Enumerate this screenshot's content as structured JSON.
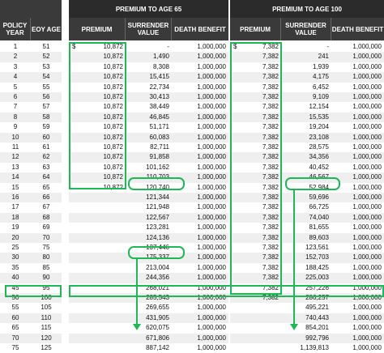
{
  "headers": {
    "policy_year": "POLICY YEAR",
    "eoy_age": "EOY AGE",
    "group65": "PREMIUM TO AGE 65",
    "group100": "PREMIUM TO AGE 100",
    "premium": "PREMIUM",
    "surrender": "SURRENDER VALUE",
    "death": "DEATH BENEFIT"
  },
  "rows": [
    {
      "year": "1",
      "age": "51",
      "p65": "10,872",
      "s65": "-",
      "d65": "1,000,000",
      "p100": "7,382",
      "s100": "-",
      "d100": "1,000,000"
    },
    {
      "year": "2",
      "age": "52",
      "p65": "10,872",
      "s65": "1,490",
      "d65": "1,000,000",
      "p100": "7,382",
      "s100": "241",
      "d100": "1,000,000"
    },
    {
      "year": "3",
      "age": "53",
      "p65": "10,872",
      "s65": "8,308",
      "d65": "1,000,000",
      "p100": "7,382",
      "s100": "1,939",
      "d100": "1,000,000"
    },
    {
      "year": "4",
      "age": "54",
      "p65": "10,872",
      "s65": "15,415",
      "d65": "1,000,000",
      "p100": "7,382",
      "s100": "4,175",
      "d100": "1,000,000"
    },
    {
      "year": "5",
      "age": "55",
      "p65": "10,872",
      "s65": "22,734",
      "d65": "1,000,000",
      "p100": "7,382",
      "s100": "6,452",
      "d100": "1,000,000"
    },
    {
      "year": "6",
      "age": "56",
      "p65": "10,872",
      "s65": "30,413",
      "d65": "1,000,000",
      "p100": "7,382",
      "s100": "9,109",
      "d100": "1,000,000"
    },
    {
      "year": "7",
      "age": "57",
      "p65": "10,872",
      "s65": "38,449",
      "d65": "1,000,000",
      "p100": "7,382",
      "s100": "12,154",
      "d100": "1,000,000"
    },
    {
      "year": "8",
      "age": "58",
      "p65": "10,872",
      "s65": "46,845",
      "d65": "1,000,000",
      "p100": "7,382",
      "s100": "15,535",
      "d100": "1,000,000"
    },
    {
      "year": "9",
      "age": "59",
      "p65": "10,872",
      "s65": "51,171",
      "d65": "1,000,000",
      "p100": "7,382",
      "s100": "19,204",
      "d100": "1,000,000"
    },
    {
      "year": "10",
      "age": "60",
      "p65": "10,872",
      "s65": "60,083",
      "d65": "1,000,000",
      "p100": "7,382",
      "s100": "23,108",
      "d100": "1,000,000"
    },
    {
      "year": "11",
      "age": "61",
      "p65": "10,872",
      "s65": "82,711",
      "d65": "1,000,000",
      "p100": "7,382",
      "s100": "28,575",
      "d100": "1,000,000"
    },
    {
      "year": "12",
      "age": "62",
      "p65": "10,872",
      "s65": "91,858",
      "d65": "1,000,000",
      "p100": "7,382",
      "s100": "34,356",
      "d100": "1,000,000"
    },
    {
      "year": "13",
      "age": "63",
      "p65": "10,872",
      "s65": "101,162",
      "d65": "1,000,000",
      "p100": "7,382",
      "s100": "40,452",
      "d100": "1,000,000"
    },
    {
      "year": "14",
      "age": "64",
      "p65": "10,872",
      "s65": "110,703",
      "d65": "1,000,000",
      "p100": "7,382",
      "s100": "46,567",
      "d100": "1,000,000"
    },
    {
      "year": "15",
      "age": "65",
      "p65": "10,872",
      "s65": "120,740",
      "d65": "1,000,000",
      "p100": "7,382",
      "s100": "52,984",
      "d100": "1,000,000"
    },
    {
      "year": "16",
      "age": "66",
      "p65": "",
      "s65": "121,344",
      "d65": "1,000,000",
      "p100": "7,382",
      "s100": "59,696",
      "d100": "1,000,000"
    },
    {
      "year": "17",
      "age": "67",
      "p65": "",
      "s65": "121,948",
      "d65": "1,000,000",
      "p100": "7,382",
      "s100": "66,725",
      "d100": "1,000,000"
    },
    {
      "year": "18",
      "age": "68",
      "p65": "",
      "s65": "122,567",
      "d65": "1,000,000",
      "p100": "7,382",
      "s100": "74,040",
      "d100": "1,000,000"
    },
    {
      "year": "19",
      "age": "69",
      "p65": "",
      "s65": "123,281",
      "d65": "1,000,000",
      "p100": "7,382",
      "s100": "81,655",
      "d100": "1,000,000"
    },
    {
      "year": "20",
      "age": "70",
      "p65": "",
      "s65": "124,136",
      "d65": "1,000,000",
      "p100": "7,382",
      "s100": "89,603",
      "d100": "1,000,000"
    },
    {
      "year": "25",
      "age": "75",
      "p65": "",
      "s65": "137,446",
      "d65": "1,000,000",
      "p100": "7,382",
      "s100": "123,561",
      "d100": "1,000,000"
    },
    {
      "year": "30",
      "age": "80",
      "p65": "",
      "s65": "175,337",
      "d65": "1,000,000",
      "p100": "7,382",
      "s100": "152,703",
      "d100": "1,000,000"
    },
    {
      "year": "35",
      "age": "85",
      "p65": "",
      "s65": "213,004",
      "d65": "1,000,000",
      "p100": "7,382",
      "s100": "188,425",
      "d100": "1,000,000"
    },
    {
      "year": "40",
      "age": "90",
      "p65": "",
      "s65": "244,356",
      "d65": "1,000,000",
      "p100": "7,382",
      "s100": "225,003",
      "d100": "1,000,000"
    },
    {
      "year": "45",
      "age": "95",
      "p65": "",
      "s65": "268,021",
      "d65": "1,000,000",
      "p100": "7,382",
      "s100": "257,226",
      "d100": "1,000,000"
    },
    {
      "year": "50",
      "age": "100",
      "p65": "",
      "s65": "285,543",
      "d65": "1,000,000",
      "p100": "7,382",
      "s100": "286,257",
      "d100": "1,000,000"
    },
    {
      "year": "55",
      "age": "105",
      "p65": "",
      "s65": "269,655",
      "d65": "1,000,000",
      "p100": "",
      "s100": "495,221",
      "d100": "1,000,000"
    },
    {
      "year": "60",
      "age": "110",
      "p65": "",
      "s65": "431,905",
      "d65": "1,000,000",
      "p100": "",
      "s100": "740,443",
      "d100": "1,000,000"
    },
    {
      "year": "65",
      "age": "115",
      "p65": "",
      "s65": "620,075",
      "d65": "1,000,000",
      "p100": "",
      "s100": "854,201",
      "d100": "1,000,000"
    },
    {
      "year": "70",
      "age": "120",
      "p65": "",
      "s65": "671,806",
      "d65": "1,000,000",
      "p100": "",
      "s100": "992,796",
      "d100": "1,000,000"
    },
    {
      "year": "75",
      "age": "125",
      "p65": "",
      "s65": "887,142",
      "d65": "1,000,000",
      "p100": "",
      "s100": "1,139,813",
      "d100": "1,000,000"
    }
  ],
  "currency_symbol": "$",
  "colors": {
    "header": "#3a3a3a",
    "highlight": "#1db954",
    "stripe": "#efefef"
  }
}
